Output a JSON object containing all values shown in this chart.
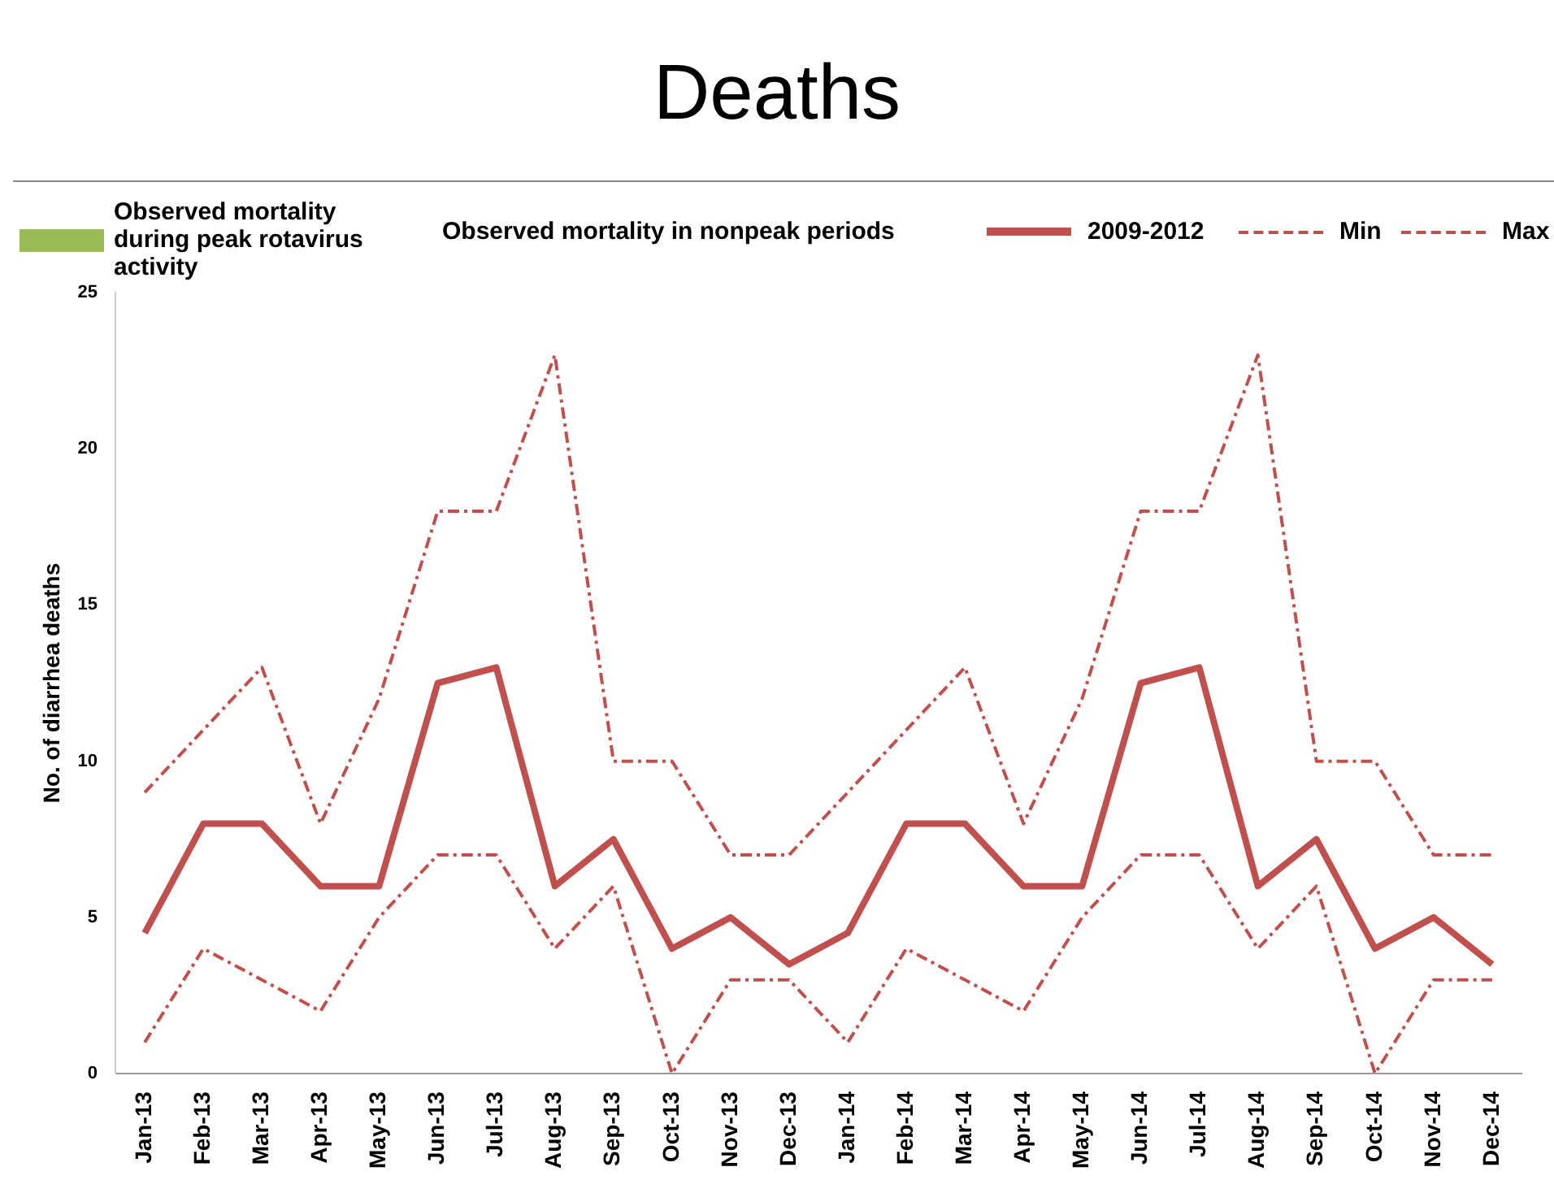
{
  "chart_data": {
    "type": "line",
    "title": "Deaths",
    "ylabel": "No. of diarrhea deaths",
    "legend_title": "Observed mortality in nonpeak periods",
    "categories": [
      "Jan-13",
      "Feb-13",
      "Mar-13",
      "Apr-13",
      "May-13",
      "Jun-13",
      "Jul-13",
      "Aug-13",
      "Sep-13",
      "Oct-13",
      "Nov-13",
      "Dec-13",
      "Jan-14",
      "Feb-14",
      "Mar-14",
      "Apr-14",
      "May-14",
      "Jun-14",
      "Jul-14",
      "Aug-14",
      "Sep-14",
      "Oct-14",
      "Nov-14",
      "Dec-14"
    ],
    "series": [
      {
        "name": "Observed mortality during peak rotavirus activity",
        "type": "bar",
        "color": "#9bbb59",
        "values": [
          null,
          null,
          null,
          null,
          null,
          null,
          null,
          null,
          null,
          null,
          null,
          null,
          null,
          null,
          null,
          null,
          null,
          null,
          null,
          null,
          null,
          null,
          null,
          null
        ]
      },
      {
        "name": "2009-2012",
        "color": "#c0504d",
        "line_style": "solid",
        "values": [
          4.5,
          8,
          8,
          6,
          6,
          12.5,
          13,
          6,
          7.5,
          4,
          5,
          3.5,
          4.5,
          8,
          8,
          6,
          6,
          12.5,
          13,
          6,
          7.5,
          4,
          5,
          3.5
        ]
      },
      {
        "name": "Min",
        "color": "#c0504d",
        "line_style": "dashed",
        "values": [
          1,
          4,
          3,
          2,
          5,
          7,
          7,
          4,
          6,
          0,
          3,
          3,
          1,
          4,
          3,
          2,
          5,
          7,
          7,
          4,
          6,
          0,
          3,
          3
        ]
      },
      {
        "name": "Max",
        "color": "#c0504d",
        "line_style": "dashed",
        "values": [
          9,
          11,
          13,
          8,
          12,
          18,
          18,
          23,
          10,
          10,
          7,
          7,
          9,
          11,
          13,
          8,
          12,
          18,
          18,
          23,
          10,
          10,
          7,
          7
        ]
      }
    ],
    "ylim": [
      0,
      25
    ],
    "yticks": [
      0,
      5,
      10,
      15,
      20,
      25
    ],
    "grid": false,
    "legend": "top",
    "marker": "none"
  }
}
